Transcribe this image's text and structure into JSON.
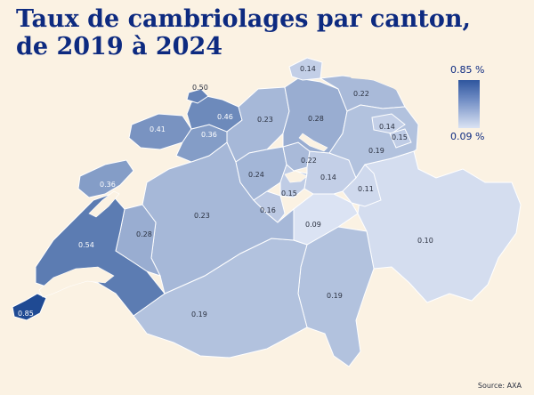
{
  "title": {
    "line1": "Taux de cambriolages par canton,",
    "line2": "de 2019 à 2024"
  },
  "legend": {
    "max_label": "0.85 %",
    "min_label": "0.09 %"
  },
  "source": "Source: AXA",
  "colors": {
    "background": "#fbf2e3",
    "title": "#0d2a80",
    "scale_low": "#dbe3f3",
    "scale_high": "#1f4a93"
  },
  "cantons": [
    {
      "id": "geneve",
      "value": 0.85,
      "label": "0.85"
    },
    {
      "id": "vaud",
      "value": 0.54,
      "label": "0.54"
    },
    {
      "id": "bale-ville",
      "value": 0.5,
      "label": "0.50"
    },
    {
      "id": "bale-campagne",
      "value": 0.46,
      "label": "0.46"
    },
    {
      "id": "jura",
      "value": 0.41,
      "label": "0.41"
    },
    {
      "id": "soleure",
      "value": 0.36,
      "label": "0.36"
    },
    {
      "id": "neuchatel",
      "value": 0.36,
      "label": "0.36"
    },
    {
      "id": "fribourg",
      "value": 0.28,
      "label": "0.28"
    },
    {
      "id": "zurich",
      "value": 0.28,
      "label": "0.28"
    },
    {
      "id": "argovie",
      "value": 0.23,
      "label": "0.23"
    },
    {
      "id": "berne",
      "value": 0.23,
      "label": "0.23"
    },
    {
      "id": "lucerne",
      "value": 0.24,
      "label": "0.24"
    },
    {
      "id": "zoug",
      "value": 0.22,
      "label": "0.22"
    },
    {
      "id": "thurgovie",
      "value": 0.22,
      "label": "0.22"
    },
    {
      "id": "valais",
      "value": 0.19,
      "label": "0.19"
    },
    {
      "id": "tessin",
      "value": 0.19,
      "label": "0.19"
    },
    {
      "id": "saint-gall",
      "value": 0.19,
      "label": "0.19"
    },
    {
      "id": "obwald",
      "value": 0.16,
      "label": "0.16"
    },
    {
      "id": "appenzell-rh-ext",
      "value": 0.14,
      "label": "0.14"
    },
    {
      "id": "appenzell-rh-int",
      "value": 0.15,
      "label": "0.15"
    },
    {
      "id": "schaffhouse",
      "value": 0.14,
      "label": "0.14"
    },
    {
      "id": "schwytz",
      "value": 0.14,
      "label": "0.14"
    },
    {
      "id": "nidwald",
      "value": 0.15,
      "label": "0.15"
    },
    {
      "id": "glaris",
      "value": 0.11,
      "label": "0.11"
    },
    {
      "id": "uri",
      "value": 0.09,
      "label": "0.09"
    },
    {
      "id": "grisons",
      "value": 0.1,
      "label": "0.10"
    }
  ]
}
